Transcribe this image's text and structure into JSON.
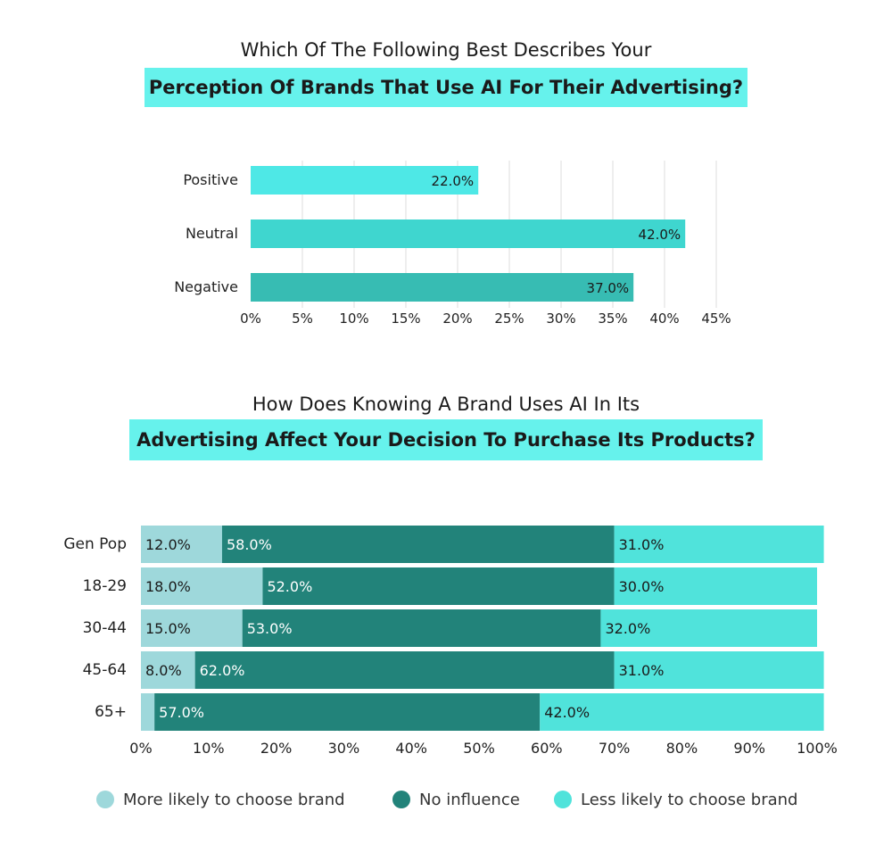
{
  "chart_data": [
    {
      "type": "bar",
      "orientation": "horizontal",
      "title_line1": "Which Of The Following Best Describes Your",
      "title_line2": "Perception Of Brands That Use AI For Their Advertising?",
      "categories": [
        "Positive",
        "Neutral",
        "Negative"
      ],
      "values": [
        22.0,
        42.0,
        37.0
      ],
      "value_labels": [
        "22.0%",
        "42.0%",
        "37.0%"
      ],
      "xlim": [
        0,
        45
      ],
      "xticks": [
        "0%",
        "5%",
        "10%",
        "15%",
        "20%",
        "25%",
        "30%",
        "35%",
        "40%",
        "45%"
      ],
      "grid": true,
      "colors": [
        "#4ee8e6",
        "#3fd6cf",
        "#37bcb3"
      ]
    },
    {
      "type": "bar",
      "orientation": "horizontal",
      "stacked": true,
      "title_line1": "How Does Knowing A Brand Uses AI In Its",
      "title_line2": "Advertising Affect Your Decision To Purchase Its Products?",
      "categories": [
        "Gen Pop",
        "18-29",
        "30-44",
        "45-64",
        "65+"
      ],
      "xlim": [
        0,
        100
      ],
      "xticks": [
        "0%",
        "10%",
        "20%",
        "30%",
        "40%",
        "50%",
        "60%",
        "70%",
        "80%",
        "90%",
        "100%"
      ],
      "legend_position": "bottom",
      "series": [
        {
          "name": "More likely to choose brand",
          "color": "#9ed8db",
          "values": [
            12,
            18,
            15,
            8,
            2
          ],
          "labels": [
            "12.0%",
            "18.0%",
            "15.0%",
            "8.0%",
            ""
          ]
        },
        {
          "name": "No influence",
          "color": "#22837a",
          "values": [
            58,
            52,
            53,
            62,
            57
          ],
          "labels": [
            "58.0%",
            "52.0%",
            "53.0%",
            "62.0%",
            "57.0%"
          ]
        },
        {
          "name": "Less likely to choose brand",
          "color": "#50e3db",
          "values": [
            31,
            30,
            32,
            31,
            42
          ],
          "labels": [
            "31.0%",
            "30.0%",
            "32.0%",
            "31.0%",
            "42.0%"
          ]
        }
      ]
    }
  ]
}
